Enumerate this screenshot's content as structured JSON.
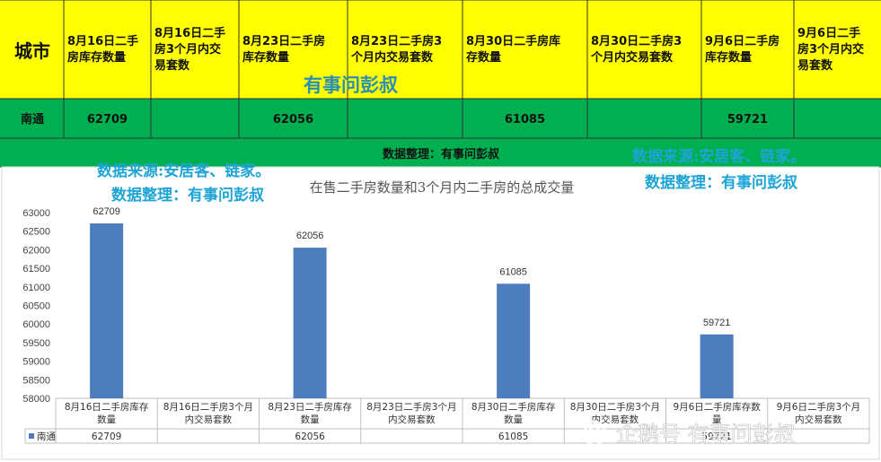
{
  "table": {
    "header": {
      "city": "城市",
      "columns": [
        [
          "8月16日二手",
          "房库存数量"
        ],
        [
          "8月16日二手",
          "房3个月内交",
          "易套数"
        ],
        [
          "8月23日二手房",
          "库存数量"
        ],
        [
          "8月23日二手房3",
          "个月内交易套数"
        ],
        [
          "8月30日二手房库",
          "存数量"
        ],
        [
          "8月30日二手房3",
          "个月内交易套数"
        ],
        [
          "9月6日二手房",
          "库存数量"
        ],
        [
          "9月6日二手",
          "房3个月内交",
          "易套数"
        ]
      ]
    },
    "row": {
      "city": "南通",
      "values": [
        "62709",
        "",
        "62056",
        "",
        "61085",
        "",
        "59721",
        ""
      ]
    },
    "merged_note": "数据整理：有事问彭叔"
  },
  "watermarks": {
    "center": "有事问彭叔",
    "left_source": "数据来源:安居客、链家。",
    "left_org": "数据整理：有事问彭叔",
    "right_source": "数据来源:安居客、链家。",
    "right_org": "数据整理：有事问彭叔",
    "corner": "企鹅号 有事问彭叔"
  },
  "chart_data": {
    "type": "bar",
    "title": "在售二手房数量和3个月内二手房的总成交量",
    "categories": [
      [
        "8月16日二手房库存",
        "数量"
      ],
      [
        "8月16日二手房3个月",
        "内交易套数"
      ],
      [
        "8月23日二手房库存",
        "数量"
      ],
      [
        "8月23日二手房3个月",
        "内交易套数"
      ],
      [
        "8月30日二手房库存",
        "数量"
      ],
      [
        "8月30日二手房3个月",
        "内交易套数"
      ],
      [
        "9月6日二手房库存数",
        "量"
      ],
      [
        "9月6日二手房3个月",
        "内交易套数"
      ]
    ],
    "series": [
      {
        "name": "南通",
        "values": [
          62709,
          null,
          62056,
          null,
          61085,
          null,
          59721,
          null
        ]
      }
    ],
    "data_table_values": [
      "62709",
      "",
      "62056",
      "",
      "61085",
      "",
      "59721",
      ""
    ],
    "ylim": [
      58000,
      63000
    ],
    "yticks": [
      58000,
      58500,
      59000,
      59500,
      60000,
      60500,
      61000,
      61500,
      62000,
      62500,
      63000
    ],
    "bar_color": "#4e7dbf",
    "legend": "data table"
  },
  "colors": {
    "header_bg": "#ffff00",
    "row_bg": "#00b050",
    "chart_bar": "#4e7dbf"
  }
}
